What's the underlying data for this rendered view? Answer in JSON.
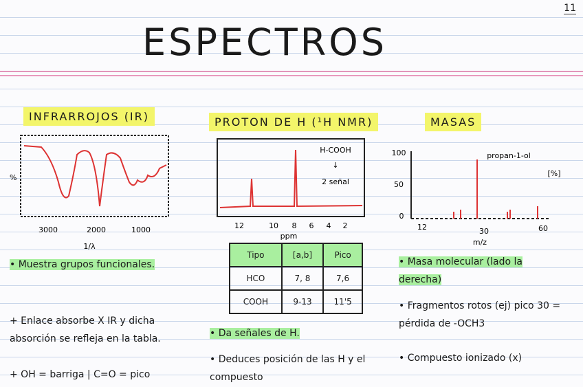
{
  "page_number": "11",
  "title": "ESPECTROS",
  "columns": [
    {
      "heading": "INFRARROJOS (IR)",
      "figure": {
        "y_label": "%",
        "x_label": "1/λ",
        "x_ticks": [
          "3000",
          "2000",
          "1000"
        ]
      },
      "notes": [
        {
          "text": "• Muestra grupos funcionales.",
          "highlight": true
        },
        {
          "text": "+ Enlace absorbe X IR y dicha absorción se refleja en la tabla.",
          "highlight": false
        },
        {
          "text": "+ OH = barriga | C=O = pico",
          "highlight": false
        }
      ]
    },
    {
      "heading": "PROTON DE H (¹H NMR)",
      "figure": {
        "annotation": "H-COOH",
        "arrow": "↓",
        "annotation_2": "2 señal",
        "x_label": "ppm",
        "x_ticks": [
          "12",
          "10",
          "8",
          "6",
          "4",
          "2"
        ]
      },
      "table": {
        "header": [
          "Tipo",
          "[a,b]",
          "Pico"
        ],
        "rows": [
          [
            "HCO",
            "7, 8",
            "7,6"
          ],
          [
            "COOH",
            "9-13",
            "11'5"
          ]
        ]
      },
      "notes": [
        {
          "text": "• Da señales de H.",
          "highlight": true
        },
        {
          "text": "• Deduces posición de las H y el compuesto",
          "highlight": false
        }
      ]
    },
    {
      "heading": "MASAS",
      "figure": {
        "annotation": "propan-1-ol",
        "y_label": "[%]",
        "y_ticks": [
          "100",
          "50",
          "0"
        ],
        "x_label": "m/z",
        "x_ticks": [
          "12",
          "30",
          "60"
        ]
      },
      "notes": [
        {
          "text": "• Masa molecular (lado la derecha)",
          "highlight": true
        },
        {
          "text": "• Fragmentos rotos (ej) pico 30 = pérdida de -OCH3",
          "highlight": false
        },
        {
          "text": "• Compuesto ionizado (x)",
          "highlight": false
        }
      ]
    }
  ]
}
